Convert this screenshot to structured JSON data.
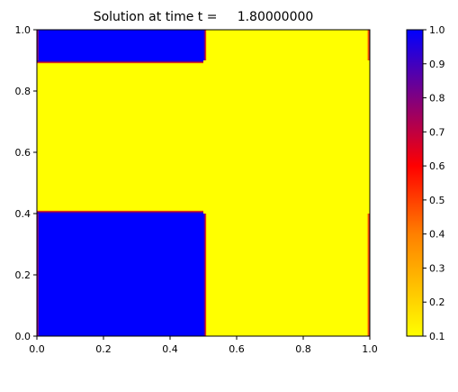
{
  "chart_data": {
    "type": "heatmap",
    "title": "Solution at time t =     1.80000000",
    "xlabel": "",
    "ylabel": "",
    "xlim": [
      0,
      1
    ],
    "ylim": [
      0,
      1
    ],
    "x_ticks": [
      "0.0",
      "0.2",
      "0.4",
      "0.6",
      "0.8",
      "1.0"
    ],
    "y_ticks": [
      "0.0",
      "0.2",
      "0.4",
      "0.6",
      "0.8",
      "1.0"
    ],
    "grid": false,
    "background_value": 0.1,
    "regions": [
      {
        "x0": 0.0,
        "x1": 0.5,
        "y0": 0.0,
        "y1": 0.4,
        "value": 1.0
      },
      {
        "x0": 0.0,
        "x1": 0.5,
        "y0": 0.9,
        "y1": 1.0,
        "value": 1.0
      }
    ],
    "boundary_bands": [
      {
        "x0": 0.99,
        "x1": 1.0,
        "y0": 0.0,
        "y1": 0.4,
        "value": 0.45
      },
      {
        "x0": 0.99,
        "x1": 1.0,
        "y0": 0.9,
        "y1": 1.0,
        "value": 0.45
      }
    ],
    "colorbar": {
      "min": 0.1,
      "max": 1.0,
      "ticks": [
        "0.1",
        "0.2",
        "0.3",
        "0.4",
        "0.5",
        "0.6",
        "0.7",
        "0.8",
        "0.9",
        "1.0"
      ],
      "colormap": [
        {
          "value": 0.1,
          "color": "#ffff00"
        },
        {
          "value": 0.4,
          "color": "#ff8000"
        },
        {
          "value": 0.6,
          "color": "#ff0000"
        },
        {
          "value": 0.8,
          "color": "#800080"
        },
        {
          "value": 1.0,
          "color": "#0000ff"
        }
      ]
    }
  }
}
